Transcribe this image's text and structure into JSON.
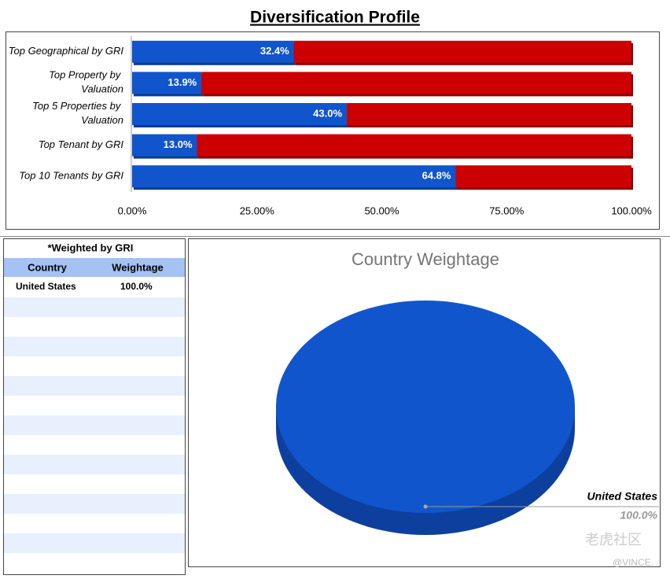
{
  "header": {
    "title": "Diversification Profile"
  },
  "chart_data": [
    {
      "type": "bar",
      "orientation": "horizontal",
      "stacked": true,
      "categories": [
        "Top Geographical by GRI",
        "Top Property by Valuation",
        "Top 5 Properties by Valuation",
        "Top Tenant by GRI",
        "Top 10 Tenants by GRI"
      ],
      "series": [
        {
          "color": "#1155cc",
          "values": [
            32.4,
            13.9,
            43.0,
            13.0,
            64.8
          ],
          "value_labels": [
            "32.4%",
            "13.9%",
            "43.0%",
            "13.0%",
            "64.8%"
          ]
        },
        {
          "color": "#cc0000",
          "values": [
            67.6,
            86.1,
            57.0,
            87.0,
            35.2
          ]
        }
      ],
      "xlim": [
        0,
        100
      ],
      "xticks": [
        {
          "value": 0,
          "label": "0.00%"
        },
        {
          "value": 25,
          "label": "25.00%"
        },
        {
          "value": 50,
          "label": "50.00%"
        },
        {
          "value": 75,
          "label": "75.00%"
        },
        {
          "value": 100,
          "label": "100.00%"
        }
      ]
    },
    {
      "type": "pie",
      "title": "Country Weightage",
      "categories": [
        "United States"
      ],
      "values": [
        100
      ],
      "value_labels": [
        "100.0%"
      ],
      "colors": [
        "#1155cc"
      ]
    }
  ],
  "table": {
    "title": "*Weighted by GRI",
    "columns": [
      "Country",
      "Weightage"
    ],
    "rows": [
      [
        "United States",
        "100.0%"
      ]
    ]
  },
  "watermark": [
    "老虎社区",
    "@VINCE."
  ]
}
